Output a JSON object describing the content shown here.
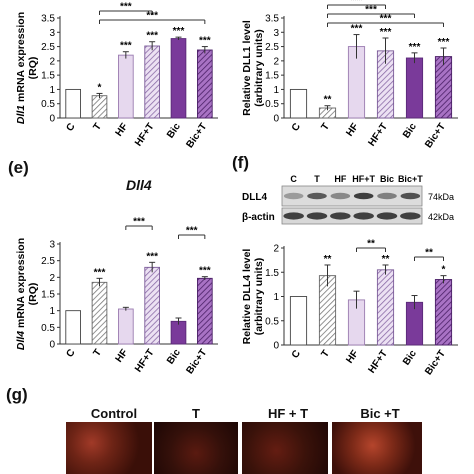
{
  "panels": {
    "e_label": "(e)",
    "f_label": "(f)",
    "g_label": "(g)",
    "e_gene": "Dll4"
  },
  "blot": {
    "lanes": [
      "C",
      "T",
      "HF",
      "HF+T",
      "Bic",
      "Bic+T"
    ],
    "rows": [
      {
        "name": "DLL4",
        "size": "74kDa"
      },
      {
        "name": "β-actin",
        "size": "42kDa"
      }
    ]
  },
  "micro": {
    "labels": [
      "Control",
      "T",
      "HF + T",
      "Bic +T"
    ]
  },
  "chart_data": [
    {
      "id": "dll1-mrna",
      "type": "bar",
      "ylabel": "Dll1 mRNA expression (RQ)",
      "ylabel_italic_prefix": "Dll1",
      "ylabel_rest": " mRNA expression",
      "ylabel_line2": "(RQ)",
      "categories": [
        "C",
        "T",
        "HF",
        "HF+T",
        "Bic",
        "Bic+T"
      ],
      "values": [
        1.0,
        0.78,
        2.2,
        2.52,
        2.78,
        2.38
      ],
      "errors": [
        0,
        0.08,
        0.12,
        0.15,
        0.05,
        0.12
      ],
      "sig": [
        "",
        "*",
        "***",
        "***",
        "***",
        "***"
      ],
      "ylim": [
        0,
        3.5
      ],
      "yticks": [
        0,
        0.5,
        1,
        1.5,
        2,
        2.5,
        3,
        3.5
      ],
      "brackets": [
        {
          "from": 1,
          "to": 3,
          "label": "***"
        },
        {
          "from": 1,
          "to": 5,
          "label": "***"
        }
      ]
    },
    {
      "id": "dll1-protein",
      "type": "bar",
      "ylabel": "Relative DLL1 level (arbitrary units)",
      "ylabel_line1": "Relative DLL1 level",
      "ylabel_line2": "(arbitrary units)",
      "categories": [
        "C",
        "T",
        "HF",
        "HF+T",
        "Bic",
        "Bic+T"
      ],
      "values": [
        1.0,
        0.35,
        2.5,
        2.35,
        2.1,
        2.15
      ],
      "errors": [
        0,
        0.08,
        0.42,
        0.45,
        0.18,
        0.3
      ],
      "sig": [
        "",
        "**",
        "***",
        "***",
        "***",
        "***"
      ],
      "ylim": [
        0,
        3.5
      ],
      "yticks": [
        0,
        0.5,
        1,
        1.5,
        2,
        2.5,
        3,
        3.5
      ],
      "brackets": [
        {
          "from": 1,
          "to": 3,
          "label": "***"
        },
        {
          "from": 1,
          "to": 4,
          "label": "***"
        },
        {
          "from": 1,
          "to": 5,
          "label": "***"
        }
      ]
    },
    {
      "id": "dll4-mrna",
      "type": "bar",
      "ylabel": "Dll4 mRNA expression (RQ)",
      "ylabel_italic_prefix": "Dll4",
      "ylabel_rest": " mRNA expression",
      "ylabel_line2": "(RQ)",
      "categories": [
        "C",
        "T",
        "HF",
        "HF+T",
        "Bic",
        "Bic+T"
      ],
      "values": [
        1.0,
        1.85,
        1.05,
        2.3,
        0.68,
        1.97
      ],
      "errors": [
        0,
        0.12,
        0.05,
        0.15,
        0.1,
        0.05
      ],
      "sig": [
        "",
        "***",
        "",
        "***",
        "",
        "***"
      ],
      "ylim": [
        0,
        3
      ],
      "yticks": [
        0,
        0.5,
        1,
        1.5,
        2,
        2.5,
        3
      ],
      "brackets": [
        {
          "from": 2,
          "to": 3,
          "label": "***"
        },
        {
          "from": 4,
          "to": 5,
          "label": "***"
        }
      ]
    },
    {
      "id": "dll4-protein",
      "type": "bar",
      "ylabel": "Relative DLL4 level (arbitrary units)",
      "ylabel_line1": "Relative DLL4 level",
      "ylabel_line2": "(arbitrary units)",
      "categories": [
        "C",
        "T",
        "HF",
        "HF+T",
        "Bic",
        "Bic+T"
      ],
      "values": [
        1.0,
        1.43,
        0.93,
        1.55,
        0.88,
        1.35
      ],
      "errors": [
        0,
        0.22,
        0.18,
        0.1,
        0.14,
        0.08
      ],
      "sig": [
        "",
        "**",
        "",
        "**",
        "",
        "*"
      ],
      "ylim": [
        0,
        2
      ],
      "yticks": [
        0,
        0.5,
        1,
        1.5,
        2
      ],
      "brackets": [
        {
          "from": 2,
          "to": 3,
          "label": "**"
        },
        {
          "from": 4,
          "to": 5,
          "label": "**"
        }
      ]
    }
  ]
}
